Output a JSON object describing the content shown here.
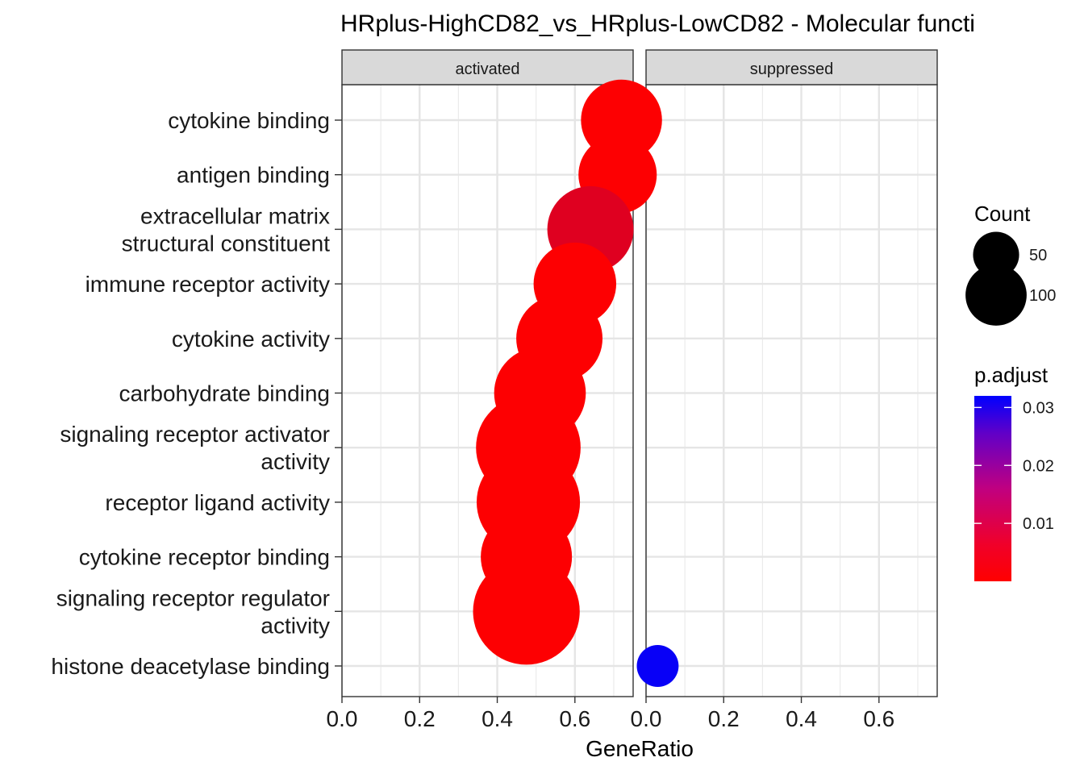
{
  "chart_data": {
    "type": "scatter",
    "title": "HRplus-HighCD82_vs_HRplus-LowCD82 - Molecular functi",
    "xlabel": "GeneRatio",
    "ylabel": "",
    "xlim": [
      0.0,
      0.75
    ],
    "x_ticks": [
      "0.0",
      "0.2",
      "0.4",
      "0.6"
    ],
    "x_tick_values": [
      0.0,
      0.2,
      0.4,
      0.6
    ],
    "facets": [
      "activated",
      "suppressed"
    ],
    "categories": [
      [
        "cytokine binding"
      ],
      [
        "antigen binding"
      ],
      [
        "extracellular matrix",
        "structural constituent"
      ],
      [
        "immune receptor activity"
      ],
      [
        "cytokine activity"
      ],
      [
        "carbohydrate binding"
      ],
      [
        "signaling receptor activator",
        "activity"
      ],
      [
        "receptor ligand activity"
      ],
      [
        "cytokine receptor binding"
      ],
      [
        "signaling receptor regulator",
        "activity"
      ],
      [
        "histone deacetylase binding"
      ]
    ],
    "points": [
      {
        "facet": "activated",
        "term": 0,
        "x": 0.72,
        "count": 75,
        "p_adjust": 0.0002
      },
      {
        "facet": "activated",
        "term": 1,
        "x": 0.71,
        "count": 70,
        "p_adjust": 0.0002
      },
      {
        "facet": "activated",
        "term": 2,
        "x": 0.64,
        "count": 85,
        "p_adjust": 0.004
      },
      {
        "facet": "activated",
        "term": 3,
        "x": 0.6,
        "count": 78,
        "p_adjust": 0.0003
      },
      {
        "facet": "activated",
        "term": 4,
        "x": 0.56,
        "count": 85,
        "p_adjust": 0.0003
      },
      {
        "facet": "activated",
        "term": 5,
        "x": 0.51,
        "count": 96,
        "p_adjust": 0.0003
      },
      {
        "facet": "activated",
        "term": 6,
        "x": 0.48,
        "count": 125,
        "p_adjust": 0.0002
      },
      {
        "facet": "activated",
        "term": 7,
        "x": 0.48,
        "count": 122,
        "p_adjust": 0.0002
      },
      {
        "facet": "activated",
        "term": 8,
        "x": 0.475,
        "count": 95,
        "p_adjust": 0.0002
      },
      {
        "facet": "activated",
        "term": 9,
        "x": 0.475,
        "count": 130,
        "p_adjust": 0.0002
      },
      {
        "facet": "suppressed",
        "term": 10,
        "x": 0.03,
        "count": 20,
        "p_adjust": 0.031
      }
    ],
    "legend_count": {
      "title": "Count",
      "values": [
        50,
        100
      ]
    },
    "legend_p_adjust": {
      "title": "p.adjust",
      "ticks": [
        "0.01",
        "0.02",
        "0.03"
      ],
      "tick_values": [
        0.01,
        0.02,
        0.03
      ],
      "range": [
        0.0,
        0.032
      ],
      "low_color": "#FF0000",
      "high_color": "#0000FF"
    },
    "grid": true,
    "legend_position": "right"
  }
}
